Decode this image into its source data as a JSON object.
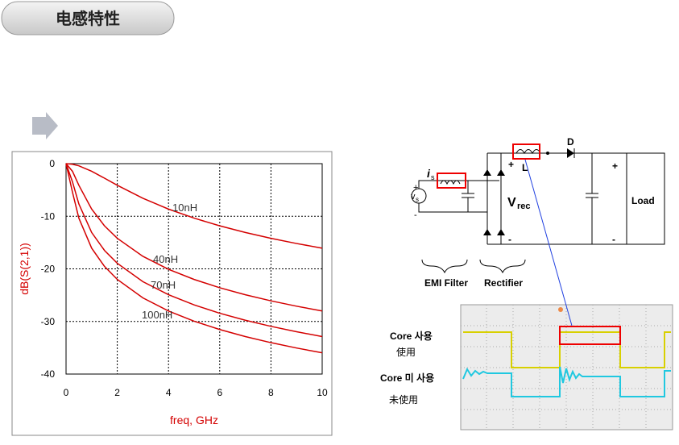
{
  "header": {
    "title": "电感特性"
  },
  "chart_data": {
    "type": "line",
    "x_label": "freq, GHz",
    "y_label": "dB(S(2,1))",
    "x": [
      0,
      0.25,
      0.5,
      1,
      1.5,
      2,
      3,
      4,
      5,
      6,
      7,
      8,
      9,
      10
    ],
    "series": [
      {
        "name": "10nH",
        "color": "#d40000",
        "values": [
          0,
          -0.11,
          -0.41,
          -1.45,
          -2.76,
          -4.11,
          -6.58,
          -8.64,
          -10.36,
          -11.82,
          -13.09,
          -14.19,
          -15.18,
          -16.07
        ]
      },
      {
        "name": "40nH",
        "color": "#d40000",
        "values": [
          0,
          -1.45,
          -4.11,
          -8.64,
          -11.82,
          -14.19,
          -17.62,
          -20.09,
          -22.01,
          -23.59,
          -24.92,
          -26.08,
          -27.1,
          -28.01
        ]
      },
      {
        "name": "70nH",
        "color": "#d40000",
        "values": [
          0,
          -3.44,
          -7.66,
          -13.09,
          -16.49,
          -18.94,
          -22.43,
          -24.92,
          -26.85,
          -28.44,
          -29.77,
          -30.93,
          -31.95,
          -32.87
        ]
      },
      {
        "name": "100nH",
        "color": "#d40000",
        "values": [
          0,
          -5.4,
          -10.36,
          -16.07,
          -19.53,
          -22.01,
          -25.52,
          -28.01,
          -29.95,
          -31.53,
          -32.87,
          -34.03,
          -35.05,
          -35.96
        ]
      }
    ],
    "xlim": [
      0,
      10
    ],
    "ylim": [
      -40,
      0
    ],
    "xticks": [
      0,
      2,
      4,
      6,
      8,
      10
    ],
    "yticks": [
      0,
      -10,
      -20,
      -30,
      -40
    ]
  },
  "circuit": {
    "source_current": "i",
    "source_current_sub": "s",
    "source_voltage": "v",
    "source_voltage_sub": "s",
    "inductor": "L",
    "diode": "D",
    "rectified_voltage": "V",
    "rectified_voltage_sub": "rec",
    "load": "Load",
    "plus": "+",
    "minus": "-",
    "filter_label": "EMI Filter",
    "rectifier_label": "Rectifier"
  },
  "scope": {
    "with_core": "Core 사용",
    "with_core_cn": "使用",
    "without_core": "Core 미 사용",
    "without_core_cn": "未使用"
  }
}
